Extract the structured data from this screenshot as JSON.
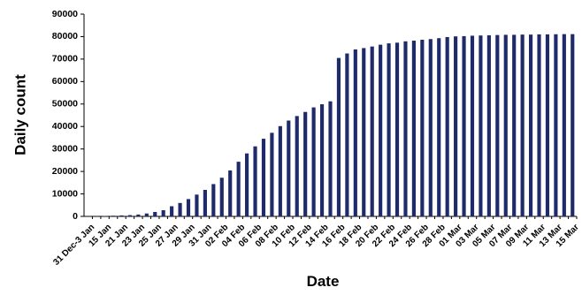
{
  "chart_data": {
    "type": "bar",
    "xlabel": "Date",
    "ylabel": "Daily count",
    "categories": [
      "31 Dec-3 Jan",
      null,
      "15 Jan",
      null,
      "21 Jan",
      null,
      "23 Jan",
      null,
      "25 Jan",
      null,
      "27 Jan",
      null,
      "29 Jan",
      null,
      "31 Jan",
      null,
      "02 Feb",
      null,
      "04 Feb",
      null,
      "06 Feb",
      null,
      "08 Feb",
      null,
      "10 Feb",
      null,
      "12 Feb",
      null,
      "14 Feb",
      null,
      "16 Feb",
      null,
      "18 Feb",
      null,
      "20 Feb",
      null,
      "22 Feb",
      null,
      "24 Feb",
      null,
      "26 Feb",
      null,
      "28 Feb",
      null,
      "01 Mar",
      null,
      "03 Mar",
      null,
      "05 Mar",
      null,
      "07 Mar",
      null,
      "09 Mar",
      null,
      "11 Mar",
      null,
      "13 Mar",
      null,
      "15 Mar"
    ],
    "values": [
      44,
      62,
      200,
      300,
      440,
      571,
      830,
      1287,
      1975,
      2744,
      4515,
      5974,
      7711,
      9692,
      11791,
      14380,
      17205,
      20438,
      24324,
      28018,
      31161,
      34546,
      37198,
      40171,
      42638,
      44653,
      46472,
      48500,
      49900,
      51200,
      70500,
      72500,
      74300,
      74900,
      75600,
      76400,
      77000,
      77300,
      77900,
      78200,
      78600,
      78900,
      79300,
      79800,
      80100,
      80200,
      80400,
      80500,
      80600,
      80700,
      80800,
      80800,
      80900,
      80900,
      81000,
      81000,
      81050,
      81100,
      81100
    ],
    "color": "#1f2a6b",
    "ylim": [
      0,
      90000
    ],
    "yticks": [
      0,
      10000,
      20000,
      30000,
      40000,
      50000,
      60000,
      70000,
      80000,
      90000
    ],
    "grid": false
  }
}
